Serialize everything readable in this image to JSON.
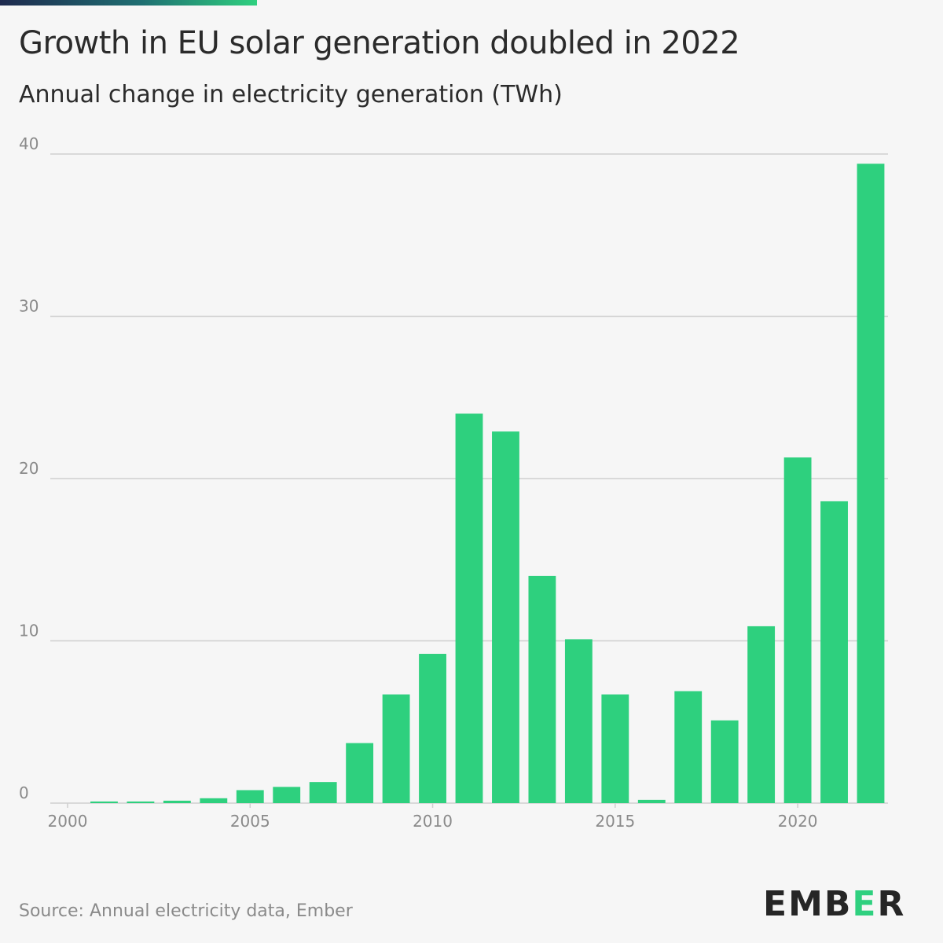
{
  "header": {
    "title": "Growth in EU solar generation doubled in 2022",
    "subtitle": "Annual change in electricity generation (TWh)"
  },
  "footer": {
    "source": "Source: Annual electricity data, Ember",
    "logo_text": "EMBER"
  },
  "colors": {
    "bar": "#2ed07e",
    "grid": "#cfcfcf",
    "tick_label": "#8a8a8a",
    "accent": "#2fd07f"
  },
  "chart_data": {
    "type": "bar",
    "title": "Growth in EU solar generation doubled in 2022",
    "subtitle": "Annual change in electricity generation (TWh)",
    "xlabel": "",
    "ylabel": "",
    "x": [
      2001,
      2002,
      2003,
      2004,
      2005,
      2006,
      2007,
      2008,
      2009,
      2010,
      2011,
      2012,
      2013,
      2014,
      2015,
      2016,
      2017,
      2018,
      2019,
      2020,
      2021,
      2022
    ],
    "values": [
      0.1,
      0.1,
      0.15,
      0.3,
      0.8,
      1.0,
      1.3,
      3.7,
      6.7,
      9.2,
      24.0,
      22.9,
      14.0,
      10.1,
      6.7,
      0.2,
      6.9,
      5.1,
      10.9,
      21.3,
      18.6,
      39.4
    ],
    "ylim": [
      0,
      40
    ],
    "yticks": [
      0,
      10,
      20,
      30,
      40
    ],
    "xlim": [
      2000,
      2022
    ],
    "xticks": [
      2000,
      2005,
      2010,
      2015,
      2020
    ],
    "grid": true,
    "legend": "none"
  }
}
